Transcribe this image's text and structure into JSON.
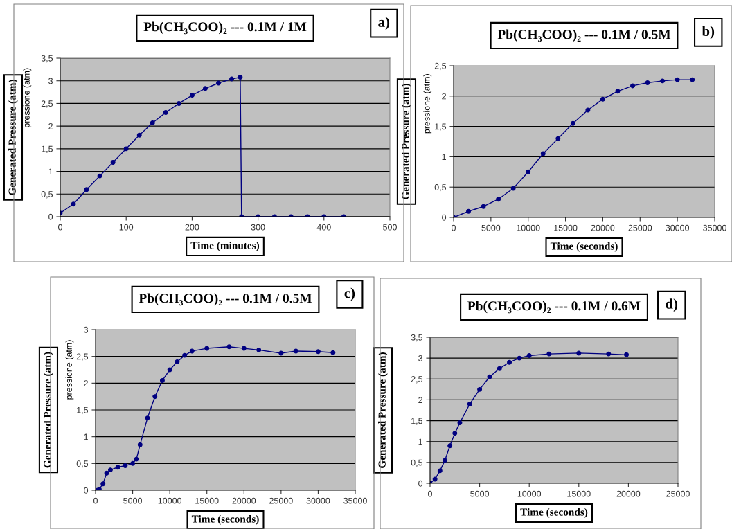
{
  "chart_data": [
    {
      "type": "line",
      "title": "Pb(CH₃COO)₂ --- 0.1M / 1M",
      "xlabel": "Time (minutes)",
      "ylabel": "Generated Pressure (atm)",
      "annotations": [
        "a)",
        "pressione (atm)"
      ],
      "grid": "y",
      "marker": "circle",
      "x": [
        0,
        20,
        40,
        60,
        80,
        100,
        120,
        140,
        160,
        180,
        200,
        220,
        240,
        260,
        273,
        275,
        300,
        325,
        350,
        375,
        400,
        430
      ],
      "series": [
        {
          "color": "#000080",
          "values": [
            0.08,
            0.28,
            0.6,
            0.9,
            1.2,
            1.5,
            1.8,
            2.07,
            2.3,
            2.5,
            2.68,
            2.83,
            2.95,
            3.04,
            3.08,
            0,
            0,
            0,
            0,
            0,
            0,
            0
          ]
        }
      ],
      "xlim": [
        0,
        500
      ],
      "xticks": [
        0,
        100,
        200,
        300,
        400,
        500
      ],
      "ylim": [
        0,
        3.5
      ],
      "yticks": [
        0,
        {
          "value": 0.5,
          "label": "0,5"
        },
        1,
        {
          "value": 1.5,
          "label": "1,5"
        },
        2,
        {
          "value": 2.5,
          "label": "2,5"
        },
        3,
        {
          "value": 3.5,
          "label": "3,5"
        }
      ]
    },
    {
      "type": "line",
      "title": "Pb(CH₃COO)₂ --- 0.1M / 0.5M",
      "xlabel": "Time (seconds)",
      "ylabel": "Generated Pressure (atm)",
      "annotations": [
        "b)",
        "pressione (atm)"
      ],
      "grid": "y",
      "marker": "circle",
      "x": [
        0,
        2000,
        4000,
        6000,
        8000,
        10000,
        12000,
        14000,
        16000,
        18000,
        20000,
        22000,
        24000,
        26000,
        28000,
        30000,
        32000
      ],
      "series": [
        {
          "color": "#000080",
          "values": [
            0,
            0.1,
            0.18,
            0.3,
            0.48,
            0.75,
            1.05,
            1.3,
            1.55,
            1.77,
            1.95,
            2.08,
            2.17,
            2.22,
            2.25,
            2.27,
            2.27
          ]
        }
      ],
      "xlim": [
        0,
        35000
      ],
      "xticks": [
        0,
        5000,
        10000,
        15000,
        20000,
        25000,
        30000,
        35000
      ],
      "ylim": [
        0,
        2.5
      ],
      "yticks": [
        0,
        {
          "value": 0.5,
          "label": "0,5"
        },
        1,
        {
          "value": 1.5,
          "label": "1,5"
        },
        2,
        {
          "value": 2.5,
          "label": "2,5"
        }
      ]
    },
    {
      "type": "line",
      "title": "Pb(CH₃COO)₂ --- 0.1M / 0.5M",
      "xlabel": "Time (seconds)",
      "ylabel": "Generated Pressure (atm)",
      "annotations": [
        "c)",
        "pressione (atm)"
      ],
      "grid": "y",
      "marker": "circle",
      "x": [
        0,
        500,
        1000,
        1500,
        2000,
        3000,
        4000,
        5000,
        5500,
        6000,
        7000,
        8000,
        9000,
        10000,
        11000,
        12000,
        13000,
        15000,
        18000,
        20000,
        22000,
        25000,
        27000,
        30000,
        32000
      ],
      "series": [
        {
          "color": "#000080",
          "values": [
            0,
            0.02,
            0.12,
            0.32,
            0.38,
            0.43,
            0.46,
            0.5,
            0.58,
            0.85,
            1.35,
            1.75,
            2.05,
            2.25,
            2.4,
            2.52,
            2.6,
            2.65,
            2.68,
            2.65,
            2.62,
            2.56,
            2.6,
            2.59,
            2.57
          ]
        }
      ],
      "xlim": [
        0,
        35000
      ],
      "xticks": [
        0,
        5000,
        10000,
        15000,
        20000,
        25000,
        30000,
        35000
      ],
      "ylim": [
        0,
        3
      ],
      "yticks": [
        0,
        {
          "value": 0.5,
          "label": "0,5"
        },
        1,
        {
          "value": 1.5,
          "label": "1,5"
        },
        2,
        {
          "value": 2.5,
          "label": "2,5"
        },
        3
      ]
    },
    {
      "type": "line",
      "title": "Pb(CH₃COO)₂ --- 0.1M / 0.6M",
      "xlabel": "Time (seconds)",
      "ylabel": "Generated Pressure (atm)",
      "annotations": [
        "d)"
      ],
      "grid": "y",
      "marker": "circle",
      "x": [
        0,
        500,
        1000,
        1500,
        2000,
        2500,
        3000,
        4000,
        5000,
        6000,
        7000,
        8000,
        9000,
        10000,
        12000,
        15000,
        18000,
        19800
      ],
      "series": [
        {
          "color": "#000080",
          "values": [
            0,
            0.1,
            0.3,
            0.55,
            0.9,
            1.2,
            1.45,
            1.9,
            2.25,
            2.55,
            2.75,
            2.9,
            3.0,
            3.06,
            3.1,
            3.12,
            3.1,
            3.08
          ]
        }
      ],
      "xlim": [
        0,
        25000
      ],
      "xticks": [
        0,
        5000,
        10000,
        15000,
        20000,
        25000
      ],
      "ylim": [
        0,
        3.5
      ],
      "yticks": [
        0,
        {
          "value": 0.5,
          "label": "0,5"
        },
        1,
        {
          "value": 1.5,
          "label": "1,5"
        },
        2,
        {
          "value": 2.5,
          "label": "2,5"
        },
        3,
        {
          "value": 3.5,
          "label": "3,5"
        }
      ]
    }
  ]
}
